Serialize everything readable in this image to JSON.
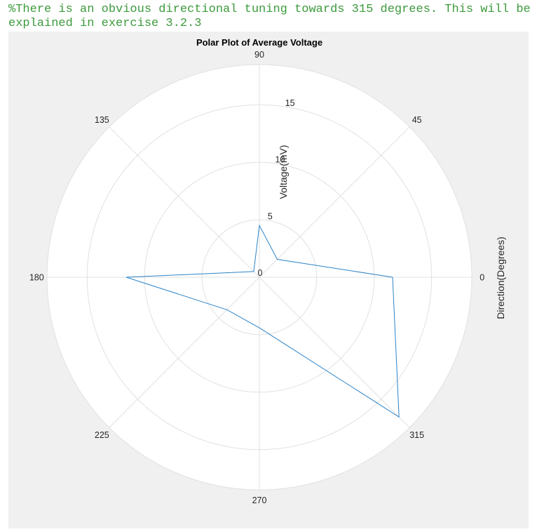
{
  "comment_text": "%There is an obvious directional tuning towards 315 degrees. This will be explained in exercise 3.2.3",
  "colors": {
    "comment": "#3c9a3c",
    "figure_bg": "#f0f0f0",
    "plot_bg": "#ffffff",
    "grid": "#e1e1e1",
    "line": "#2d84c8",
    "text": "#262626"
  },
  "chart_data": {
    "type": "line",
    "coordinate_system": "polar",
    "title": "Polar Plot of Average Voltage",
    "xlabel": "Direction(Degrees)",
    "ylabel": "Voltage(mV)",
    "theta_unit": "degrees",
    "theta_ticks": [
      0,
      45,
      90,
      135,
      180,
      225,
      270,
      315
    ],
    "theta_tick_labels": [
      "0",
      "45",
      "90",
      "135",
      "180",
      "225",
      "270",
      "315"
    ],
    "r_ticks": [
      0,
      5,
      10,
      15
    ],
    "r_tick_labels": [
      "0",
      "5",
      "10",
      "15"
    ],
    "rlim": [
      0,
      18.5
    ],
    "grid": true,
    "series": [
      {
        "theta": [
          0,
          45,
          90,
          135,
          180,
          225,
          270,
          315,
          0
        ],
        "r": [
          11.6,
          2.2,
          4.5,
          0.7,
          11.6,
          4.0,
          4.4,
          17.2,
          11.6
        ]
      }
    ]
  }
}
